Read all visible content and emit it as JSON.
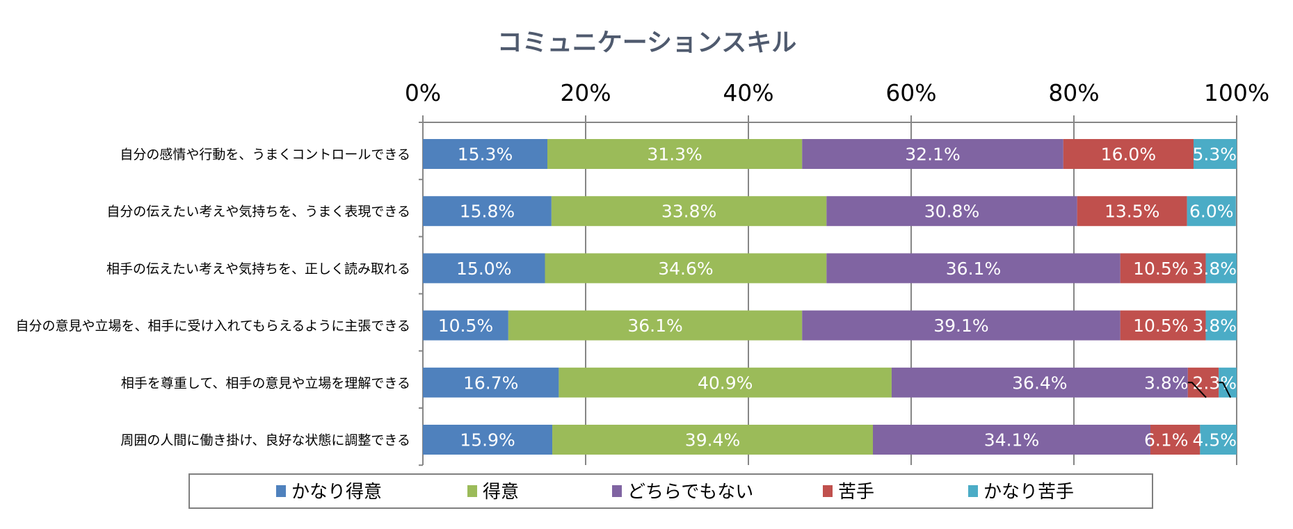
{
  "chart_data": {
    "type": "bar",
    "orientation": "horizontal",
    "stacked": "percent",
    "title": "コミュニケーションスキル",
    "xlim": [
      0,
      100
    ],
    "xticks": [
      "0%",
      "20%",
      "40%",
      "60%",
      "80%",
      "100%"
    ],
    "grid": true,
    "legend_position": "bottom",
    "categories": [
      "自分の感情や行動を、うまくコントロールできる",
      "自分の伝えたい考えや気持ちを、うまく表現できる",
      "相手の伝えたい考えや気持ちを、正しく読み取れる",
      "自分の意見や立場を、相手に受け入れてもらえるように主張できる",
      "相手を尊重して、相手の意見や立場を理解できる",
      "周囲の人間に働き掛け、良好な状態に調整できる"
    ],
    "series": [
      {
        "name": "かなり得意",
        "color": "#4F81BD",
        "values": [
          15.3,
          15.8,
          15.0,
          10.5,
          16.7,
          15.9
        ],
        "labels": [
          "15.3%",
          "15.8%",
          "15.0%",
          "10.5%",
          "16.7%",
          "15.9%"
        ]
      },
      {
        "name": "得意",
        "color": "#9BBB59",
        "values": [
          31.3,
          33.8,
          34.6,
          36.1,
          40.9,
          39.4
        ],
        "labels": [
          "31.3%",
          "33.8%",
          "34.6%",
          "36.1%",
          "40.9%",
          "39.4%"
        ]
      },
      {
        "name": "どちらでもない",
        "color": "#8064A2",
        "values": [
          32.1,
          30.8,
          36.1,
          39.1,
          36.4,
          34.1
        ],
        "labels": [
          "32.1%",
          "30.8%",
          "36.1%",
          "39.1%",
          "36.4%",
          "34.1%"
        ]
      },
      {
        "name": "苦手",
        "color": "#C0504D",
        "values": [
          16.0,
          13.5,
          10.5,
          10.5,
          3.8,
          6.1
        ],
        "labels": [
          "16.0%",
          "13.5%",
          "10.5%",
          "10.5%",
          "3.8%",
          "6.1%"
        ]
      },
      {
        "name": "かなり苦手",
        "color": "#4BACC6",
        "values": [
          5.3,
          6.0,
          3.8,
          3.8,
          2.3,
          4.5
        ],
        "labels": [
          "5.3%",
          "6.0%",
          "3.8%",
          "3.8%",
          "2.3%",
          "4.5%"
        ]
      }
    ]
  }
}
